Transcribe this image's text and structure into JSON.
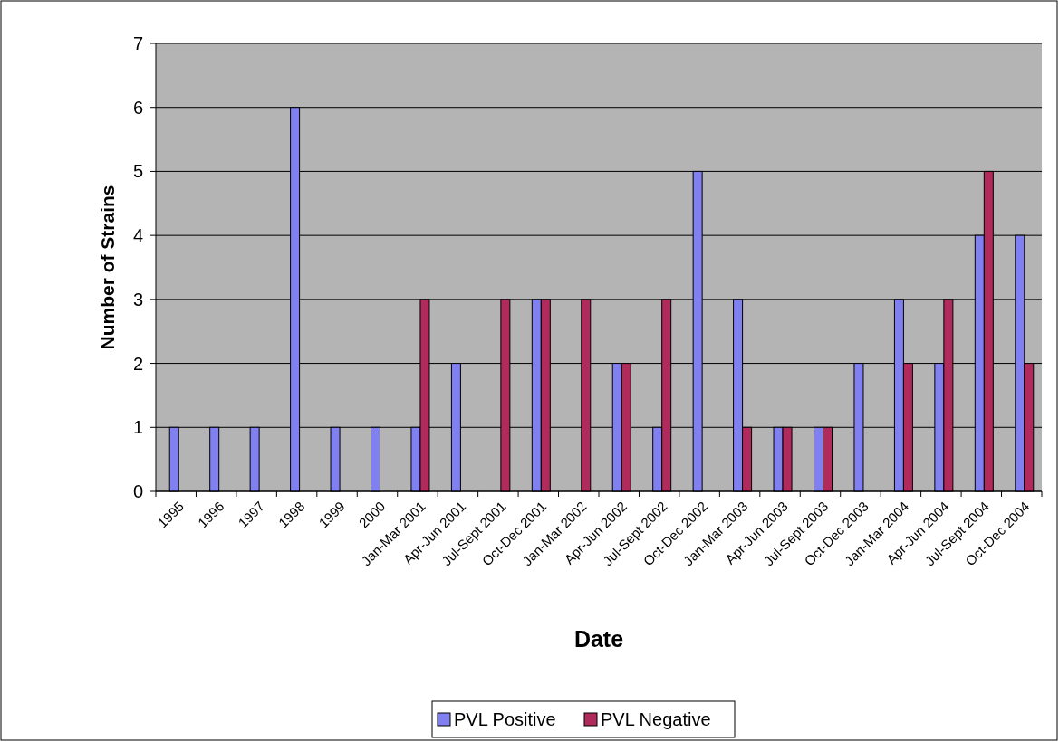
{
  "chart_data": {
    "type": "bar",
    "xlabel": "Date",
    "ylabel": "Number of Strains",
    "categories": [
      "1995",
      "1996",
      "1997",
      "1998",
      "1999",
      "2000",
      "Jan-Mar 2001",
      "Apr-Jun 2001",
      "Jul-Sept 2001",
      "Oct-Dec 2001",
      "Jan-Mar 2002",
      "Apr-Jun 2002",
      "Jul-Sept 2002",
      "Oct-Dec 2002",
      "Jan-Mar 2003",
      "Apr-Jun 2003",
      "Jul-Sept 2003",
      "Oct-Dec 2003",
      "Jan-Mar 2004",
      "Apr-Jun 2004",
      "Jul-Sept 2004",
      "Oct-Dec 2004"
    ],
    "series": [
      {
        "name": "PVL Positive",
        "color": "#8080f0",
        "values": [
          1,
          1,
          1,
          6,
          1,
          1,
          1,
          2,
          0,
          3,
          0,
          2,
          1,
          5,
          3,
          1,
          1,
          2,
          3,
          2,
          4,
          4
        ]
      },
      {
        "name": "PVL Negative",
        "color": "#b02a5c",
        "values": [
          0,
          0,
          0,
          0,
          0,
          0,
          3,
          0,
          3,
          3,
          3,
          2,
          3,
          0,
          1,
          1,
          1,
          0,
          2,
          3,
          5,
          2
        ]
      }
    ],
    "ylim": [
      0,
      7
    ],
    "yticks": [
      0,
      1,
      2,
      3,
      4,
      5,
      6,
      7
    ],
    "grid": "y",
    "legend": "bottom"
  }
}
